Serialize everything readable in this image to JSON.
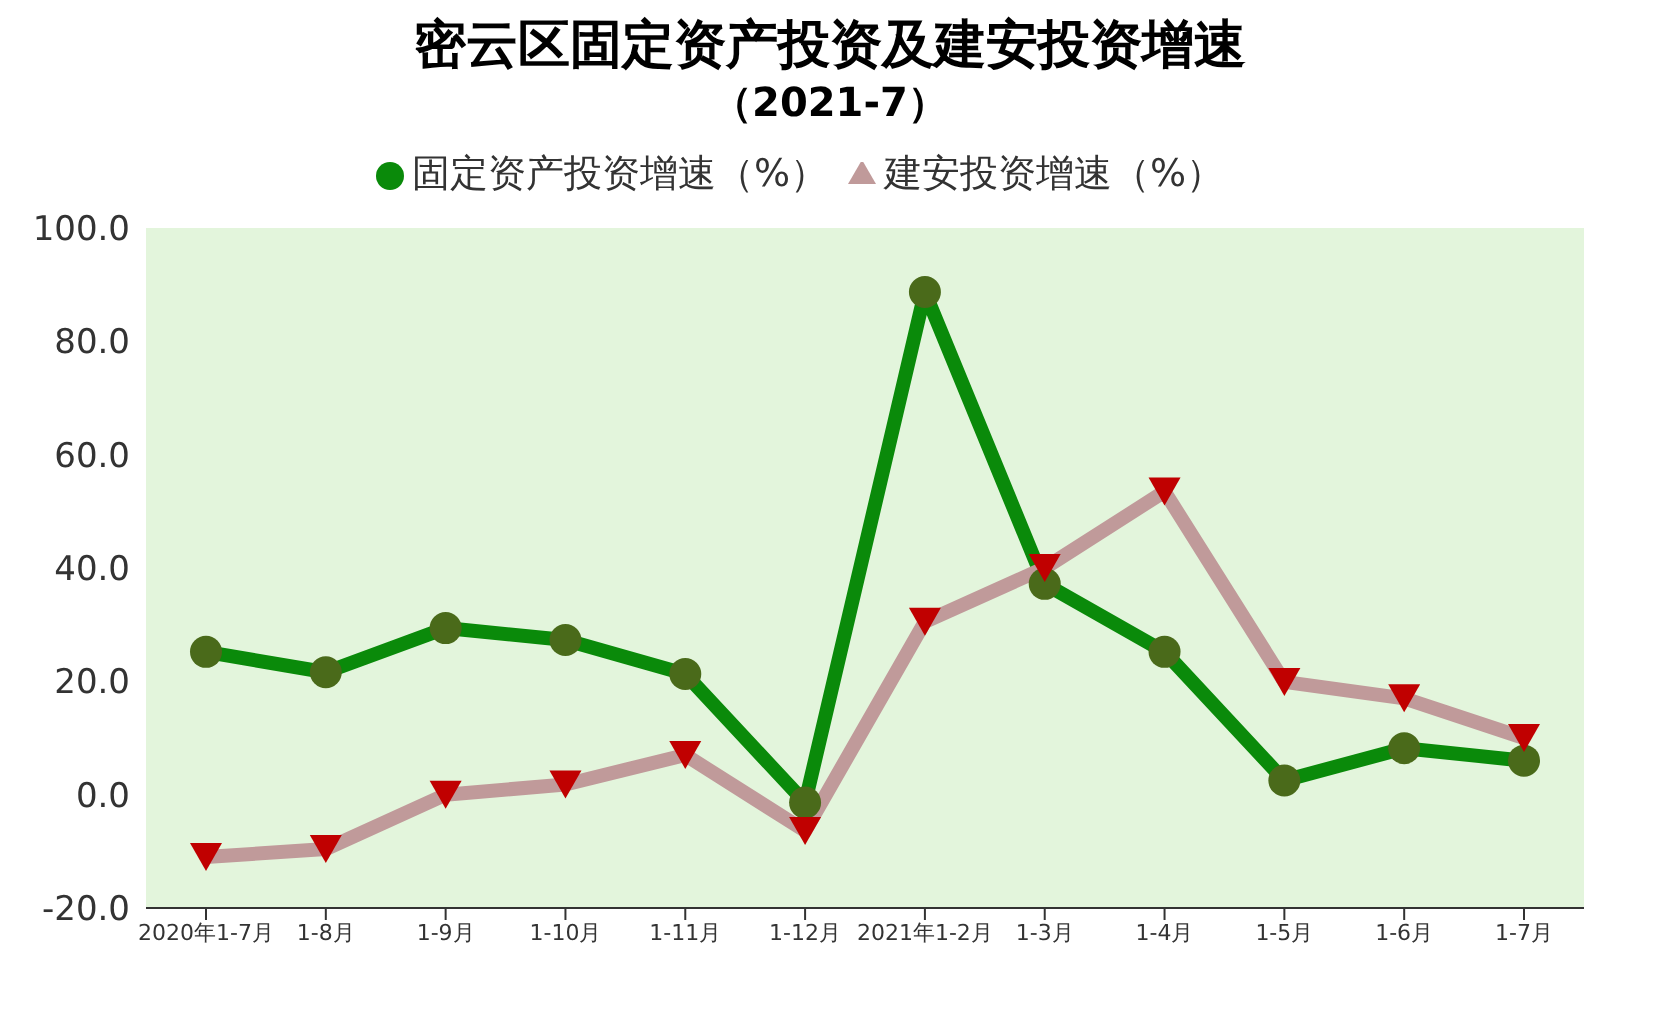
{
  "chart_data": {
    "type": "line",
    "title": "密云区固定资产投资及建安投资增速",
    "subtitle": "（2021-7）",
    "categories": [
      "2020年1-7月",
      "1-8月",
      "1-9月",
      "1-10月",
      "1-11月",
      "1-12月",
      "2021年1-2月",
      "1-3月",
      "1-4月",
      "1-5月",
      "1-6月",
      "1-7月"
    ],
    "series": [
      {
        "name": "固定资产投资增速（%）",
        "color": "#0a8a0a",
        "marker": "circle",
        "values": [
          25.2,
          21.6,
          29.4,
          27.3,
          21.3,
          -1.4,
          88.7,
          37.2,
          25.2,
          2.5,
          8.2,
          6.0
        ]
      },
      {
        "name": "建安投资增速（%）",
        "color": "#c09a9a",
        "marker": "triangle",
        "values": [
          -11.0,
          -9.6,
          0.0,
          1.8,
          7.0,
          -6.4,
          30.5,
          40.0,
          53.5,
          19.9,
          17.0,
          10.0
        ]
      }
    ],
    "ylim": [
      -20,
      100
    ],
    "yticks": [
      {
        "value": -20,
        "label": "-20.0"
      },
      {
        "value": 0,
        "label": "0.0"
      },
      {
        "value": 20,
        "label": "20.0"
      },
      {
        "value": 40,
        "label": "40.0"
      },
      {
        "value": 60,
        "label": "60.0"
      },
      {
        "value": 80,
        "label": "80.0"
      },
      {
        "value": 100,
        "label": "100.0"
      }
    ],
    "legend": "top"
  }
}
